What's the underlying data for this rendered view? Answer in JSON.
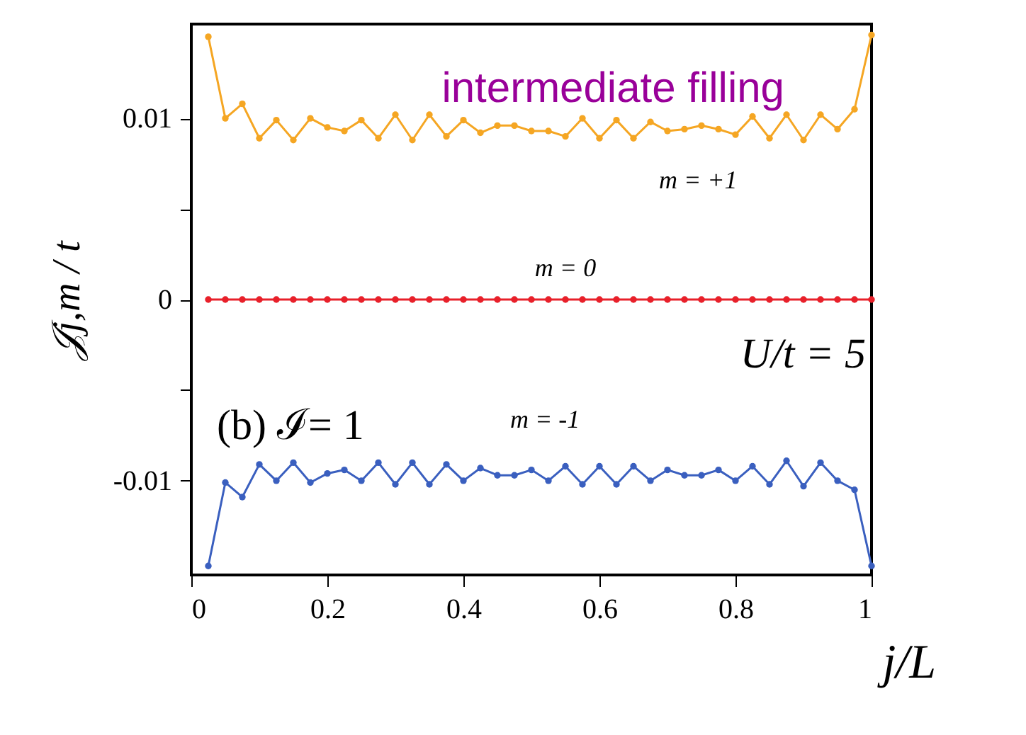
{
  "chart_data": {
    "type": "line",
    "xlabel": "j/L",
    "ylabel": "𝒥j,m / t",
    "xlim": [
      0,
      1
    ],
    "xticks": [
      0,
      0.2,
      0.4,
      0.6,
      0.8,
      1
    ],
    "ylim": [
      -0.0152,
      0.0152
    ],
    "yticks": [
      {
        "value": -0.01,
        "label": "-0.01"
      },
      {
        "value": -0.005,
        "label": null
      },
      0,
      {
        "value": 0.005,
        "label": null
      },
      {
        "value": 0.01,
        "label": "0.01"
      }
    ],
    "x": [
      0.025,
      0.05,
      0.075,
      0.1,
      0.125,
      0.15,
      0.175,
      0.2,
      0.225,
      0.25,
      0.275,
      0.3,
      0.325,
      0.35,
      0.375,
      0.4,
      0.425,
      0.45,
      0.475,
      0.5,
      0.525,
      0.55,
      0.575,
      0.6,
      0.625,
      0.65,
      0.675,
      0.7,
      0.725,
      0.75,
      0.775,
      0.8,
      0.825,
      0.85,
      0.875,
      0.9,
      0.925,
      0.95,
      0.975,
      1.0
    ],
    "series": [
      {
        "color": "#f5a623",
        "values": [
          0.0145,
          0.01,
          0.0108,
          0.0089,
          0.0099,
          0.0088,
          0.01,
          0.0095,
          0.0093,
          0.0099,
          0.0089,
          0.0102,
          0.0088,
          0.0102,
          0.009,
          0.0099,
          0.0092,
          0.0096,
          0.0096,
          0.0093,
          0.0093,
          0.009,
          0.01,
          0.0089,
          0.0099,
          0.0089,
          0.0098,
          0.0093,
          0.0094,
          0.0096,
          0.0094,
          0.0091,
          0.0101,
          0.0089,
          0.0102,
          0.0088,
          0.0102,
          0.0094,
          0.0105,
          0.0146
        ]
      },
      {
        "color": "#e8202a",
        "values": [
          0,
          0,
          0,
          0,
          0,
          0,
          0,
          0,
          0,
          0,
          0,
          0,
          0,
          0,
          0,
          0,
          0,
          0,
          0,
          0,
          0,
          0,
          0,
          0,
          0,
          0,
          0,
          0,
          0,
          0,
          0,
          0,
          0,
          0,
          0,
          0,
          0,
          0,
          0,
          0
        ]
      },
      {
        "color": "#3a5fbf",
        "values": [
          -0.0147,
          -0.0101,
          -0.0109,
          -0.0091,
          -0.01,
          -0.009,
          -0.0101,
          -0.0096,
          -0.0094,
          -0.01,
          -0.009,
          -0.0102,
          -0.009,
          -0.0102,
          -0.0091,
          -0.01,
          -0.0093,
          -0.0097,
          -0.0097,
          -0.0094,
          -0.01,
          -0.0092,
          -0.0102,
          -0.0092,
          -0.0102,
          -0.0092,
          -0.01,
          -0.0094,
          -0.0097,
          -0.0097,
          -0.0094,
          -0.01,
          -0.0092,
          -0.0102,
          -0.0089,
          -0.0103,
          -0.009,
          -0.01,
          -0.0105,
          -0.0147
        ]
      }
    ],
    "marker": "circle",
    "line_style": "solid",
    "grid": false,
    "annotations": [
      "intermediate filling",
      "m = +1",
      "m = 0",
      "m = -1",
      "(b) ℐ= 1",
      "U/t = 5"
    ]
  }
}
